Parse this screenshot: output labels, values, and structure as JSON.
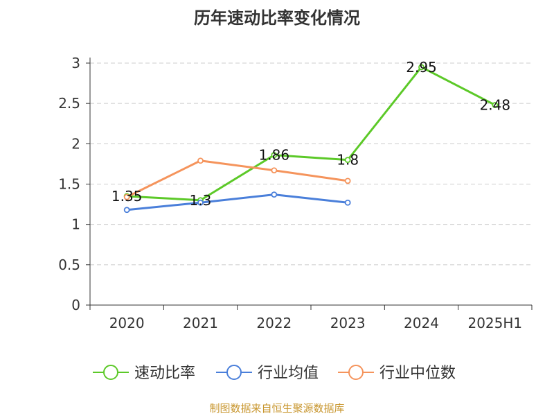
{
  "title": "历年速动比率变化情况",
  "source": "制图数据来自恒生聚源数据库",
  "chart_data": {
    "type": "line",
    "title": "历年速动比率变化情况",
    "categories": [
      "2020",
      "2021",
      "2022",
      "2023",
      "2024",
      "2025H1"
    ],
    "y_ticks": [
      "0",
      "0.5",
      "1",
      "1.5",
      "2",
      "2.5",
      "3"
    ],
    "ylim": [
      0,
      3
    ],
    "grid": true,
    "legend_position": "bottom",
    "series": [
      {
        "name": "速动比率",
        "color": "#5cc928",
        "values": [
          1.35,
          1.3,
          1.86,
          1.8,
          2.95,
          2.48
        ],
        "labels": [
          "1.35",
          "1.3",
          "1.86",
          "1.8",
          "2.95",
          "2.48"
        ]
      },
      {
        "name": "行业均值",
        "color": "#4a7fda",
        "values": [
          1.18,
          1.27,
          1.37,
          1.27,
          null,
          null
        ]
      },
      {
        "name": "行业中位数",
        "color": "#f5945c",
        "values": [
          1.34,
          1.79,
          1.67,
          1.54,
          null,
          null
        ]
      }
    ]
  }
}
